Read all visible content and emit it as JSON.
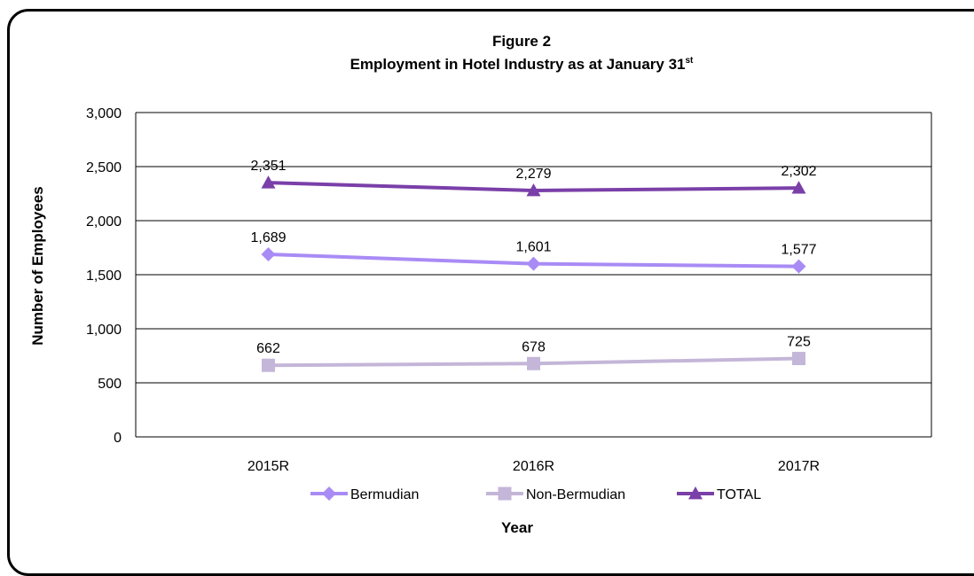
{
  "chart_data": {
    "type": "line",
    "title": "Figure 2",
    "subtitle": "Employment in Hotel Industry as at January 31",
    "subtitle_superscript": "st",
    "xlabel": "Year",
    "ylabel": "Number of Employees",
    "categories": [
      "2015R",
      "2016R",
      "2017R"
    ],
    "ylim": [
      0,
      3000
    ],
    "yticks": [
      0,
      500,
      1000,
      1500,
      2000,
      2500,
      3000
    ],
    "ytick_labels": [
      "0",
      "500",
      "1,000",
      "1,500",
      "2,000",
      "2,500",
      "3,000"
    ],
    "grid": true,
    "legend_position": "bottom",
    "series": [
      {
        "name": "Bermudian",
        "values": [
          1689,
          1601,
          1577
        ],
        "labels": [
          "1,689",
          "1,601",
          "1,577"
        ],
        "color": "#a98bf5",
        "marker": "diamond"
      },
      {
        "name": "Non-Bermudian",
        "values": [
          662,
          678,
          725
        ],
        "labels": [
          "662",
          "678",
          "725"
        ],
        "color": "#c4b6d8",
        "marker": "square"
      },
      {
        "name": "TOTAL",
        "values": [
          2351,
          2279,
          2302
        ],
        "labels": [
          "2,351",
          "2,279",
          "2,302"
        ],
        "color": "#7a3fa8",
        "marker": "triangle"
      }
    ]
  }
}
